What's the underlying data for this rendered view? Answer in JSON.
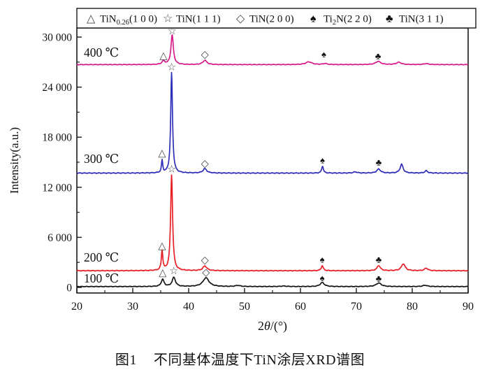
{
  "chart_data": {
    "type": "line",
    "title": "",
    "xlabel": "2θ/(°)",
    "xlabel_segments": [
      {
        "t": "2"
      },
      {
        "t": "θ",
        "italic": true
      },
      {
        "t": "/(°)"
      }
    ],
    "ylabel": "Intensity(a.u.)",
    "xlim": [
      20,
      90
    ],
    "ylim": [
      0,
      31000
    ],
    "grid": false,
    "x_major_ticks": [
      20,
      30,
      40,
      50,
      60,
      70,
      80,
      90
    ],
    "x_minor_ticks": [
      25,
      35,
      45,
      55,
      65,
      75,
      85
    ],
    "y_major_ticks": [
      0,
      6000,
      12000,
      18000,
      24000,
      30000
    ],
    "y_tick_labels": [
      "0",
      "6 000",
      "12 000",
      "18 000",
      "24 000",
      "30 000"
    ],
    "y_minor_ticks": [
      3000,
      9000,
      15000,
      21000,
      27000
    ],
    "marker_colors": {
      "hollow": "#4a4a4a",
      "solid": "#111111"
    },
    "legend": {
      "position": "top",
      "items": [
        {
          "symbol": "triangle-icon",
          "glyph": "△",
          "filled": false,
          "segments": [
            {
              "t": "TiN"
            },
            {
              "t": "0.26",
              "sub": true
            },
            {
              "t": "(1 0 0)"
            }
          ]
        },
        {
          "symbol": "star-icon",
          "glyph": "☆",
          "filled": false,
          "segments": [
            {
              "t": "TiN(1 1 1)"
            }
          ]
        },
        {
          "symbol": "diamond-icon",
          "glyph": "◇",
          "filled": false,
          "segments": [
            {
              "t": "TiN(2 0 0)"
            }
          ]
        },
        {
          "symbol": "spade-icon",
          "glyph": "♠",
          "filled": true,
          "segments": [
            {
              "t": "Ti"
            },
            {
              "t": "2",
              "sub": true
            },
            {
              "t": "N(2 2 0)"
            }
          ]
        },
        {
          "symbol": "club-icon",
          "glyph": "♣",
          "filled": true,
          "segments": [
            {
              "t": "TiN(3 1 1)"
            }
          ]
        }
      ]
    },
    "series": [
      {
        "id": "100c",
        "name": "100 ℃",
        "color": "#141414",
        "baseline": 100,
        "noise": 45,
        "peaks": [
          [
            35.35,
            850,
            0.3
          ],
          [
            37.35,
            1100,
            0.35
          ],
          [
            43.1,
            1050,
            0.65
          ],
          [
            48.8,
            130,
            0.5
          ],
          [
            57.0,
            60,
            0.6
          ],
          [
            63.9,
            480,
            0.45
          ],
          [
            74.0,
            430,
            0.55
          ],
          [
            82.3,
            150,
            0.5
          ]
        ],
        "label_pos": [
          21.25,
          590
        ],
        "markers": [
          [
            "△",
            35.35,
            1750
          ],
          [
            "☆",
            37.35,
            1950
          ],
          [
            "◇",
            43.1,
            1800
          ],
          [
            "♠",
            63.9,
            1150
          ],
          [
            "♣",
            74.0,
            1100
          ]
        ]
      },
      {
        "id": "200c",
        "name": "200 ℃",
        "color": "#e81e25",
        "baseline": 2000,
        "noise": 55,
        "peaks": [
          [
            35.25,
            2350,
            0.16
          ],
          [
            36.95,
            11500,
            0.21
          ],
          [
            42.9,
            560,
            0.42
          ],
          [
            63.9,
            600,
            0.22
          ],
          [
            74.0,
            620,
            0.35
          ],
          [
            78.4,
            830,
            0.4
          ],
          [
            82.5,
            300,
            0.35
          ]
        ],
        "label_pos": [
          21.25,
          3100
        ],
        "markers": [
          [
            "△",
            35.25,
            5000
          ],
          [
            "☆",
            36.95,
            14150
          ],
          [
            "◇",
            42.9,
            3250
          ],
          [
            "♠",
            63.9,
            3350
          ],
          [
            "♣",
            74.0,
            3350
          ]
        ]
      },
      {
        "id": "300c",
        "name": "300 ℃",
        "color": "#2e2eb8",
        "baseline": 13700,
        "noise": 55,
        "peaks": [
          [
            35.25,
            1500,
            0.13
          ],
          [
            36.95,
            12050,
            0.19
          ],
          [
            42.9,
            520,
            0.4
          ],
          [
            63.95,
            850,
            0.18
          ],
          [
            69.8,
            140,
            0.4
          ],
          [
            74.0,
            480,
            0.4
          ],
          [
            78.1,
            1050,
            0.32
          ],
          [
            82.5,
            280,
            0.3
          ]
        ],
        "label_pos": [
          21.25,
          14900
        ],
        "markers": [
          [
            "△",
            35.25,
            16100
          ],
          [
            "☆",
            36.95,
            26400
          ],
          [
            "◇",
            42.9,
            14850
          ],
          [
            "♠",
            63.95,
            15250
          ],
          [
            "♣",
            74.0,
            15000
          ]
        ]
      },
      {
        "id": "400c",
        "name": "400 ℃",
        "color": "#d81b8c",
        "baseline": 26700,
        "noise": 45,
        "peaks": [
          [
            35.5,
            420,
            0.3
          ],
          [
            37.05,
            3550,
            0.26
          ],
          [
            42.9,
            520,
            0.42
          ],
          [
            61.5,
            330,
            0.65
          ],
          [
            64.4,
            130,
            0.4
          ],
          [
            73.9,
            380,
            0.55
          ],
          [
            77.6,
            280,
            0.5
          ],
          [
            82.5,
            120,
            0.5
          ]
        ],
        "label_pos": [
          21.25,
          27650
        ],
        "markers": [
          [
            "△",
            35.5,
            27800
          ],
          [
            "☆",
            37.05,
            30700
          ],
          [
            "◇",
            42.9,
            27900
          ],
          [
            "♠",
            64.2,
            27950
          ],
          [
            "♣",
            73.9,
            27750
          ]
        ]
      }
    ]
  },
  "caption": {
    "figure_no": "图1",
    "text": "不同基体温度下TiN涂层XRD谱图"
  }
}
